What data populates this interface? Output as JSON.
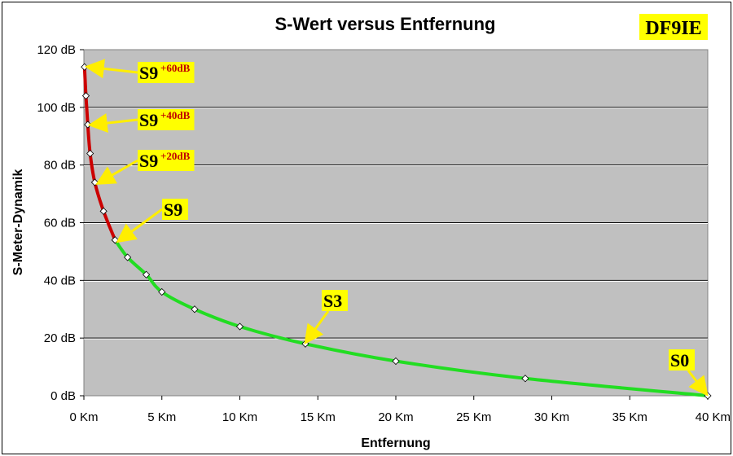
{
  "chart_data": {
    "type": "line",
    "title": "S-Wert versus Entfernung",
    "xlabel": "Entfernung",
    "ylabel": "S-Meter-Dynamik",
    "xlim": [
      0,
      40
    ],
    "ylim": [
      0,
      120
    ],
    "x_ticks": [
      "0 Km",
      "5 Km",
      "10 Km",
      "15 Km",
      "20 Km",
      "25 Km",
      "30 Km",
      "35 Km",
      "40 Km"
    ],
    "y_ticks": [
      "0 dB",
      "20 dB",
      "40 dB",
      "60 dB",
      "80 dB",
      "100 dB",
      "120 dB"
    ],
    "grid": "horizontal",
    "badge": "DF9IE",
    "series": [
      {
        "color": "#cc0000",
        "points": [
          [
            0.04,
            114
          ],
          [
            0.13,
            104
          ],
          [
            0.25,
            94
          ],
          [
            0.4,
            84
          ],
          [
            0.7,
            74
          ],
          [
            1.26,
            64
          ],
          [
            2.0,
            54
          ]
        ]
      },
      {
        "color": "#22dd22",
        "points": [
          [
            2.0,
            54
          ],
          [
            2.8,
            48
          ],
          [
            4.0,
            42
          ],
          [
            5.0,
            36
          ],
          [
            7.1,
            30
          ],
          [
            10.0,
            24
          ],
          [
            14.2,
            18
          ],
          [
            20.0,
            12
          ],
          [
            28.3,
            6
          ],
          [
            40.0,
            0
          ]
        ]
      }
    ],
    "annotations": [
      {
        "text": "S9",
        "sup": "+60dB"
      },
      {
        "text": "S9",
        "sup": "+40dB"
      },
      {
        "text": "S9",
        "sup": "+20dB"
      },
      {
        "text": "S9",
        "sup": ""
      },
      {
        "text": "S3",
        "sup": ""
      },
      {
        "text": "S0",
        "sup": ""
      }
    ]
  }
}
